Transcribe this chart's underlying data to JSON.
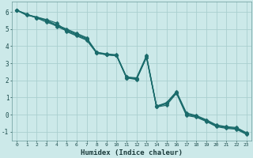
{
  "xlabel": "Humidex (Indice chaleur)",
  "ylabel": "",
  "xlim": [
    -0.5,
    23.5
  ],
  "ylim": [
    -1.5,
    6.6
  ],
  "xticks": [
    0,
    1,
    2,
    3,
    4,
    5,
    6,
    7,
    8,
    9,
    10,
    11,
    12,
    13,
    14,
    15,
    16,
    17,
    18,
    19,
    20,
    21,
    22,
    23
  ],
  "yticks": [
    -1,
    0,
    1,
    2,
    3,
    4,
    5,
    6
  ],
  "background_color": "#cce9e9",
  "grid_color": "#aacfcf",
  "line_color": "#1a6b6b",
  "line1_x": [
    0,
    1,
    2,
    3,
    4,
    5,
    6,
    7,
    8,
    9,
    10,
    11,
    12,
    13,
    14,
    15,
    16,
    17,
    18,
    19,
    20,
    21,
    22,
    23
  ],
  "line1_y": [
    6.1,
    5.85,
    5.65,
    5.4,
    5.2,
    4.95,
    4.7,
    4.45,
    3.6,
    3.5,
    3.45,
    2.15,
    2.1,
    3.35,
    0.45,
    0.65,
    1.3,
    0.0,
    -0.1,
    -0.35,
    -0.65,
    -0.75,
    -0.8,
    -1.1
  ],
  "line2_x": [
    0,
    2,
    3,
    4,
    5,
    6,
    7,
    8,
    9,
    10,
    11,
    12,
    13,
    14,
    15,
    16,
    17,
    18,
    19,
    20,
    21,
    22,
    23
  ],
  "line2_y": [
    6.1,
    5.65,
    5.5,
    5.25,
    5.0,
    4.75,
    4.5,
    3.65,
    3.5,
    3.45,
    2.2,
    2.1,
    3.4,
    0.5,
    0.65,
    1.3,
    0.05,
    -0.1,
    -0.35,
    -0.65,
    -0.75,
    -0.8,
    -1.1
  ],
  "line3_x": [
    0,
    1,
    3,
    4,
    5,
    6,
    7,
    8,
    9,
    10,
    11,
    12,
    13,
    14,
    15,
    16,
    17,
    18,
    19,
    20,
    21,
    22,
    23
  ],
  "line3_y": [
    6.1,
    5.85,
    5.55,
    5.35,
    4.85,
    4.6,
    4.35,
    3.6,
    3.5,
    3.45,
    2.15,
    2.05,
    3.35,
    0.45,
    0.55,
    1.25,
    -0.05,
    -0.15,
    -0.4,
    -0.7,
    -0.8,
    -0.85,
    -1.15
  ],
  "line4_x": [
    0,
    1,
    2,
    3,
    4,
    5,
    6,
    7,
    8,
    9,
    10,
    11,
    12,
    13,
    14,
    15,
    16,
    17,
    18,
    19,
    20,
    21,
    22,
    23
  ],
  "line4_y": [
    6.1,
    5.8,
    5.7,
    5.5,
    5.15,
    4.9,
    4.65,
    4.4,
    3.65,
    3.55,
    3.5,
    2.2,
    2.15,
    3.45,
    0.5,
    0.7,
    1.35,
    0.1,
    -0.05,
    -0.3,
    -0.6,
    -0.7,
    -0.75,
    -1.05
  ]
}
